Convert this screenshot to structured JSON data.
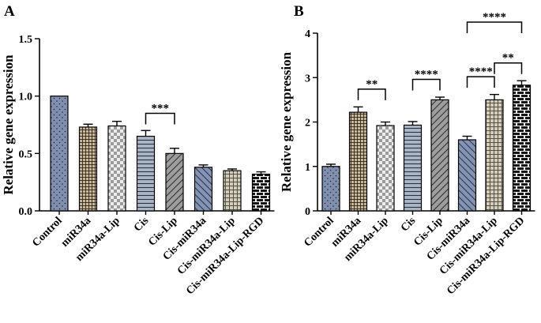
{
  "chart_data": [
    {
      "panel": "A",
      "type": "bar",
      "title": "",
      "ylabel": "Relative gene expression",
      "xlabel": "",
      "ylim": [
        0,
        1.5
      ],
      "yticks": [
        "0.0",
        "0.5",
        "1.0",
        "1.5"
      ],
      "categories": [
        "Control",
        "miR34a",
        "miR34a-Lip",
        "Cis",
        "Cis-Lip",
        "Cis-miR34a",
        "Cis-miR34a-Lip",
        "Cis-miR34a-Lip-RGD"
      ],
      "values": [
        1.0,
        0.73,
        0.74,
        0.65,
        0.5,
        0.38,
        0.35,
        0.32
      ],
      "errors": [
        0,
        0.025,
        0.04,
        0.05,
        0.045,
        0.02,
        0.015,
        0.02
      ],
      "significance": [
        {
          "from": "Cis",
          "to": "Cis-Lip",
          "label": "***"
        }
      ]
    },
    {
      "panel": "B",
      "type": "bar",
      "title": "",
      "ylabel": "Relative gene expression",
      "xlabel": "",
      "ylim": [
        0,
        4
      ],
      "yticks": [
        "0",
        "1",
        "2",
        "3",
        "4"
      ],
      "categories": [
        "Control",
        "miR34a",
        "miR34a-Lip",
        "Cis",
        "Cis-Lip",
        "Cis-miR34a",
        "Cis-miR34a-Lip",
        "Cis-miR34a-Lip-RGD"
      ],
      "values": [
        1.0,
        2.22,
        1.92,
        1.93,
        2.5,
        1.6,
        2.5,
        2.83
      ],
      "errors": [
        0.05,
        0.12,
        0.08,
        0.08,
        0.06,
        0.08,
        0.12,
        0.1
      ],
      "significance": [
        {
          "from": "miR34a",
          "to": "miR34a-Lip",
          "label": "**"
        },
        {
          "from": "Cis",
          "to": "Cis-Lip",
          "label": "****"
        },
        {
          "from": "Cis-miR34a",
          "to": "Cis-miR34a-Lip",
          "label": "****"
        },
        {
          "from": "Cis-miR34a-Lip",
          "to": "Cis-miR34a-Lip-RGD",
          "label": "**"
        },
        {
          "from": "Cis-miR34a",
          "to": "Cis-miR34a-Lip-RGD",
          "label": "****"
        }
      ]
    }
  ],
  "colors": {
    "control": "#7f8fad",
    "mir34a": "#b5a58a",
    "mir34a_lip": "#cfcfcf",
    "cis": "#aab6c6",
    "cis_lip": "#a6a6a6",
    "cis_mir34a": "#7f8fad",
    "cis_mir34a_lip": "#c4bfae",
    "cis_mir34a_lip_rgd": "#1a1a1a"
  }
}
